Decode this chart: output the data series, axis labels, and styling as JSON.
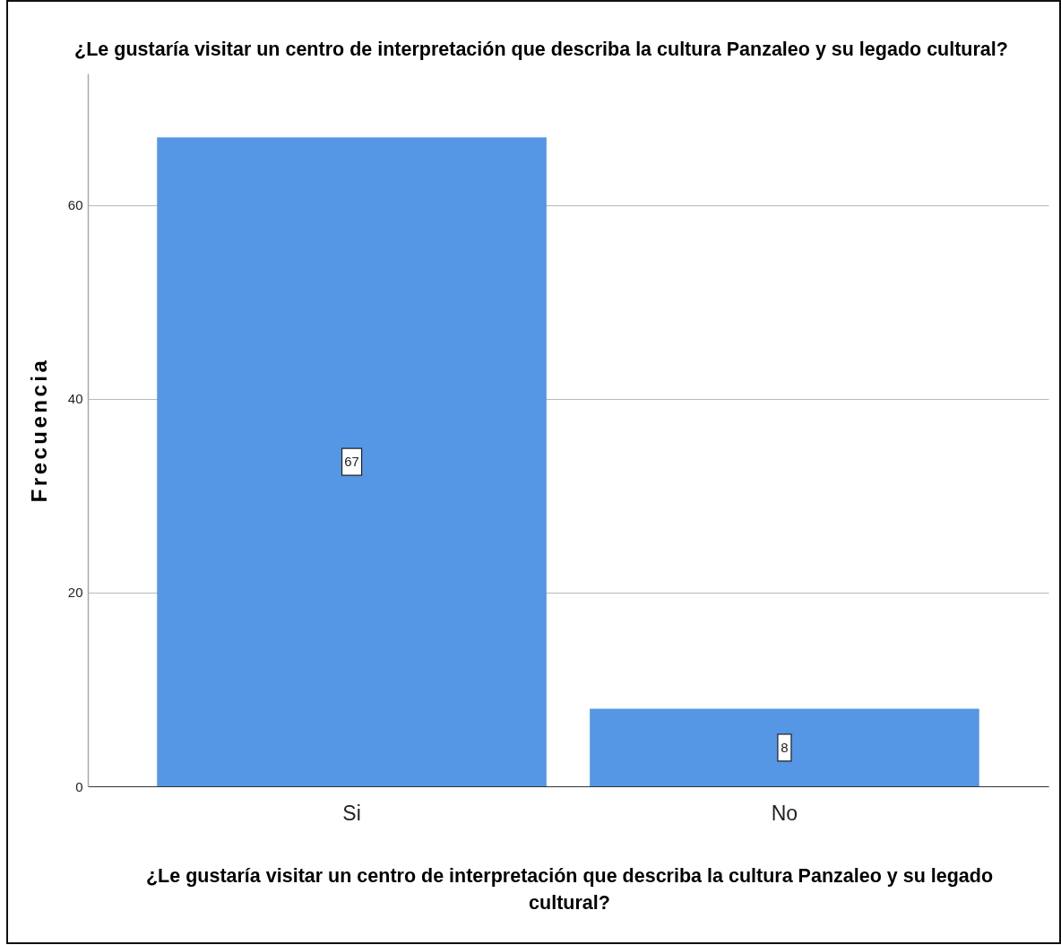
{
  "chart_data": {
    "type": "bar",
    "title": "¿Le gustaría visitar un centro de interpretación que describa la cultura Panzaleo y su legado cultural?",
    "xlabel": "¿Le gustaría visitar un centro de interpretación que describa la cultura Panzaleo y su legado cultural?",
    "ylabel": "Frecuencia",
    "categories": [
      "Si",
      "No"
    ],
    "values": [
      67,
      8
    ],
    "color": "#5596e5",
    "ylim": [
      0,
      73.6
    ],
    "yticks": [
      0,
      20,
      40,
      60
    ],
    "grid": "y",
    "data_labels": true
  }
}
